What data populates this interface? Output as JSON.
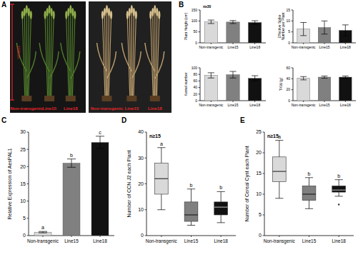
{
  "photo_panel": {
    "label": "A",
    "scale_bar": "100cm",
    "groups": [
      [
        "Non-transgenic",
        "Line15",
        "Line18"
      ],
      [
        "Non-transgenic",
        "Line15",
        "Line18"
      ]
    ]
  },
  "chart_data": [
    {
      "type": "bar",
      "panel": "B",
      "note": "n≥30",
      "ylabel": "Plant Height (cm)",
      "categories": [
        "Non-transgenic",
        "Line15",
        "Line18"
      ],
      "values": [
        96,
        95,
        93
      ],
      "errors": [
        8,
        7,
        8
      ],
      "colors": [
        "#d9d9d9",
        "#808080",
        "#111111"
      ],
      "ylim": [
        0,
        150
      ],
      "yticks": [
        0,
        50,
        100,
        150
      ]
    },
    {
      "type": "bar",
      "ylabel": "Effective Spike Number per Plant",
      "categories": [
        "Non-transgenic",
        "Line15",
        "Line18"
      ],
      "values": [
        6.3,
        7.0,
        5.7
      ],
      "errors": [
        3,
        3,
        2.5
      ],
      "colors": [
        "#d9d9d9",
        "#808080",
        "#111111"
      ],
      "ylim": [
        0,
        15
      ],
      "yticks": [
        0,
        5,
        10,
        15
      ]
    },
    {
      "type": "bar",
      "ylabel": "Kernel number",
      "categories": [
        "Non-transgenic",
        "Line15",
        "Line18"
      ],
      "values": [
        77,
        79,
        68
      ],
      "errors": [
        8,
        10,
        8
      ],
      "colors": [
        "#d9d9d9",
        "#808080",
        "#111111"
      ],
      "ylim": [
        0,
        100
      ],
      "yticks": [
        0,
        20,
        40,
        60,
        80,
        100
      ]
    },
    {
      "type": "bar",
      "ylabel": "TKW (g)",
      "categories": [
        "Non-transgenic",
        "Line15",
        "Line18"
      ],
      "values": [
        41,
        43,
        43
      ],
      "errors": [
        3,
        2,
        2
      ],
      "colors": [
        "#d9d9d9",
        "#808080",
        "#111111"
      ],
      "ylim": [
        0,
        60
      ],
      "yticks": [
        0,
        20,
        40,
        60
      ]
    },
    {
      "type": "bar",
      "panel": "C",
      "ylabel": "Relative Expression of AesPAL1",
      "categories": [
        "Non-transgenic",
        "Line15",
        "Line18"
      ],
      "values": [
        1,
        21,
        27
      ],
      "errors": [
        0.2,
        1.2,
        1.8
      ],
      "annotations": [
        "a",
        "b",
        "c"
      ],
      "colors": [
        "#d9d9d9",
        "#808080",
        "#111111"
      ],
      "ylim": [
        0,
        30
      ],
      "yticks": [
        0,
        5,
        10,
        15,
        20,
        25,
        30
      ]
    },
    {
      "type": "box",
      "panel": "D",
      "note": "n≥15",
      "ylabel": "Number of CCN J2 each Plant",
      "categories": [
        "Non-transgenic",
        "Line15",
        "Line18"
      ],
      "boxes": [
        {
          "min": 10,
          "q1": 16,
          "median": 22,
          "q3": 28,
          "max": 34
        },
        {
          "min": 4,
          "q1": 5.5,
          "median": 8,
          "q3": 13,
          "max": 18
        },
        {
          "min": 5,
          "q1": 8,
          "median": 11,
          "q3": 13,
          "max": 17
        }
      ],
      "outliers": [
        [],
        [],
        []
      ],
      "annotations": [
        "a",
        "b",
        "b"
      ],
      "colors": [
        "#d9d9d9",
        "#808080",
        "#111111"
      ],
      "ylim": [
        0,
        40
      ],
      "yticks": [
        0,
        10,
        20,
        30,
        40
      ]
    },
    {
      "type": "box",
      "panel": "E",
      "note": "n≥15",
      "ylabel": "Number of Cereal Cyst each Plant",
      "categories": [
        "Non-transgenic",
        "Line15",
        "Line18"
      ],
      "boxes": [
        {
          "min": 9,
          "q1": 13,
          "median": 15.5,
          "q3": 19,
          "max": 23
        },
        {
          "min": 6.5,
          "q1": 8.5,
          "median": 10,
          "q3": 12,
          "max": 14
        },
        {
          "min": 9.5,
          "q1": 10.5,
          "median": 11,
          "q3": 12,
          "max": 13.5
        }
      ],
      "outliers": [
        [],
        [],
        [
          7.5
        ]
      ],
      "annotations": [
        "a",
        "b",
        "b"
      ],
      "colors": [
        "#d9d9d9",
        "#808080",
        "#111111"
      ],
      "ylim": [
        0,
        25
      ],
      "yticks": [
        0,
        5,
        10,
        15,
        20,
        25
      ]
    }
  ]
}
